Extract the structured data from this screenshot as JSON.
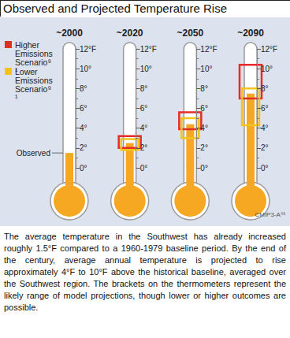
{
  "chart_data": {
    "type": "bar",
    "title": "Observed and Projected Temperature Rise",
    "categories": [
      "~2000",
      "~2020",
      "~2050",
      "~2090"
    ],
    "values": [
      1.5,
      2.5,
      4.4,
      7.5
    ],
    "color": "#f7a823",
    "ranges": [
      {
        "name": "Higher Emissions Scenario⁹¹",
        "color": "#e52d27",
        "low": [
          null,
          2.0,
          3.9,
          7.0
        ],
        "high": [
          null,
          3.2,
          5.6,
          10.4
        ]
      },
      {
        "name": "Lower Emissions Scenario⁹¹",
        "color": "#f2c318",
        "low": [
          null,
          1.8,
          3.0,
          4.3
        ],
        "high": [
          null,
          2.9,
          5.0,
          8.0
        ]
      }
    ],
    "ylim": [
      0,
      12
    ],
    "yticks": [
      {
        "value": 0,
        "label": "0°"
      },
      {
        "value": 2,
        "label": "2°"
      },
      {
        "value": 4,
        "label": "4°"
      },
      {
        "value": 6,
        "label": "6°"
      },
      {
        "value": 8,
        "label": "8°"
      },
      {
        "value": 10,
        "label": "10°"
      },
      {
        "value": 12,
        "label": "12°F"
      }
    ],
    "annotations": [
      {
        "text": "Observed",
        "category": "~2000",
        "value": 1.5
      }
    ],
    "source": "CMIP3-A⁹³",
    "caption": "The average temperature in the Southwest has already increased roughly 1.5°F compared to a 1960-1979 baseline period. By the end of the century, average annual temperature is projected to rise approximately 4°F to 10°F above the historical baseline, averaged over the Southwest region. The brackets on the thermometers represent the likely range of model projections, though lower or higher outcomes are possible.",
    "legend": "top-left",
    "grid": false
  }
}
